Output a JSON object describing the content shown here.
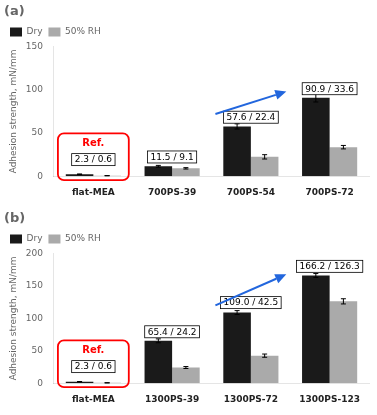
{
  "chart_data": [
    {
      "type": "bar",
      "title": "(a)",
      "categories": [
        "flat-MEA",
        "700PS-39",
        "700PS-54",
        "700PS-72"
      ],
      "series": [
        {
          "name": "Dry",
          "color": "#1a1a1a",
          "values": [
            2.3,
            11.5,
            57.6,
            90.9
          ],
          "errors": [
            0.3,
            1.0,
            3.0,
            5.0
          ]
        },
        {
          "name": "50% RH",
          "color": "#aaaaaa",
          "values": [
            0.6,
            9.1,
            22.4,
            33.6
          ],
          "errors": [
            0.15,
            0.8,
            2.5,
            2.0
          ]
        }
      ],
      "ylabel": "Adhesion strength, mN/mm",
      "ylim": [
        0,
        150
      ],
      "yticks": [
        0,
        50,
        100,
        150
      ],
      "grid": false,
      "legend": "upper left",
      "annotations": [
        {
          "text": "11.5 / 9.1",
          "category": "700PS-39",
          "y": 13
        },
        {
          "text": "57.6 / 22.4",
          "category": "700PS-54",
          "y": 59
        },
        {
          "text": "90.9 / 33.6",
          "category": "700PS-72",
          "y": 92
        }
      ],
      "ref_box": {
        "category": "flat-MEA",
        "text": "Ref.",
        "label": "2.3 / 0.6",
        "color": "red"
      },
      "arrow": {
        "from": {
          "x": 1.55,
          "y": 72
        },
        "to": {
          "x": 2.45,
          "y": 98
        },
        "color": "#2266dd"
      }
    },
    {
      "type": "bar",
      "title": "(b)",
      "categories": [
        "flat-MEA",
        "1300PS-39",
        "1300PS-72",
        "1300PS-123"
      ],
      "series": [
        {
          "name": "Dry",
          "color": "#1a1a1a",
          "values": [
            2.3,
            65.4,
            109.0,
            166.2
          ],
          "errors": [
            0.3,
            3.0,
            3.0,
            3.0
          ]
        },
        {
          "name": "50% RH",
          "color": "#aaaaaa",
          "values": [
            0.6,
            24.2,
            42.5,
            126.3
          ],
          "errors": [
            0.15,
            1.5,
            2.5,
            4.0
          ]
        }
      ],
      "ylabel": "Adhesion strength, mN/mm",
      "ylim": [
        0,
        200
      ],
      "yticks": [
        0,
        50,
        100,
        150,
        200
      ],
      "grid": false,
      "legend": "upper left",
      "annotations": [
        {
          "text": "65.4 / 24.2",
          "category": "1300PS-39",
          "y": 67
        },
        {
          "text": "109.0 / 42.5",
          "category": "1300PS-72",
          "y": 112
        },
        {
          "text": "166.2 / 126.3",
          "category": "1300PS-123",
          "y": 168
        }
      ],
      "ref_box": {
        "category": "flat-MEA",
        "text": "Ref.",
        "label": "2.3 / 0.6",
        "color": "red"
      },
      "arrow": {
        "from": {
          "x": 1.55,
          "y": 120
        },
        "to": {
          "x": 2.45,
          "y": 168
        },
        "color": "#2266dd"
      }
    }
  ]
}
